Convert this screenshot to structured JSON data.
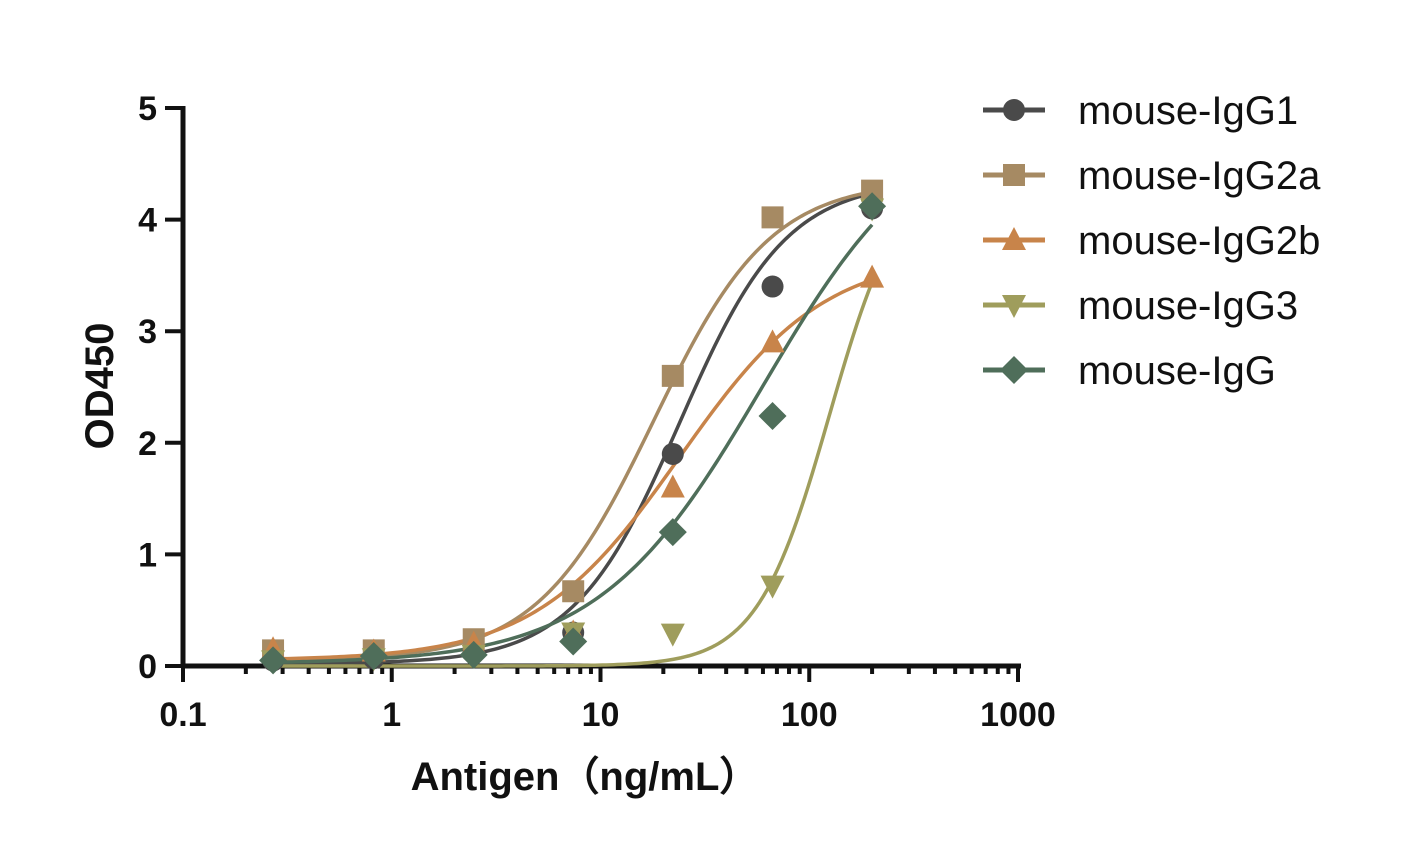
{
  "chart_data": {
    "type": "scatter",
    "xlabel": "Antigen（ng/mL）",
    "ylabel": "OD450",
    "x_scale": "log",
    "xlim": [
      0.1,
      1000
    ],
    "ylim": [
      0,
      5
    ],
    "x_ticks": [
      "0.1",
      "1",
      "10",
      "100",
      "1000"
    ],
    "x_tick_values": [
      0.1,
      1,
      10,
      100,
      1000
    ],
    "y_ticks": [
      "0",
      "1",
      "2",
      "3",
      "4",
      "5"
    ],
    "y_tick_values": [
      0,
      1,
      2,
      3,
      4,
      5
    ],
    "grid": false,
    "legend_position": "top-right",
    "fit": "sigmoidal",
    "x": [
      0.27,
      0.82,
      2.47,
      7.4,
      22.2,
      66.7,
      200
    ],
    "series": [
      {
        "name": "mouse-IgG1",
        "marker": "circle",
        "color": "#4a4a4a",
        "values": [
          0.05,
          0.07,
          0.12,
          0.3,
          1.9,
          3.4,
          4.1
        ],
        "fit": {
          "bottom": 0.02,
          "top": 4.35,
          "ec50": 24,
          "hill": 1.7
        }
      },
      {
        "name": "mouse-IgG2a",
        "marker": "square",
        "color": "#a68a63",
        "values": [
          0.14,
          0.14,
          0.24,
          0.67,
          2.6,
          4.02,
          4.26
        ],
        "fit": {
          "bottom": 0.05,
          "top": 4.35,
          "ec50": 18,
          "hill": 1.55
        }
      },
      {
        "name": "mouse-IgG2b",
        "marker": "triangle-up",
        "color": "#c8844a",
        "values": [
          0.15,
          0.13,
          0.2,
          0.3,
          1.6,
          2.9,
          3.48
        ],
        "fit": {
          "bottom": 0.05,
          "top": 3.7,
          "ec50": 24,
          "hill": 1.25
        }
      },
      {
        "name": "mouse-IgG3",
        "marker": "triangle-down",
        "color": "#9f9d5c",
        "values": [
          0.05,
          0.07,
          0.1,
          0.3,
          0.29,
          0.72,
          4.1
        ],
        "fit": {
          "bottom": 0.0,
          "top": 4.5,
          "ec50": 125,
          "hill": 2.5
        }
      },
      {
        "name": "mouse-IgG",
        "marker": "diamond",
        "color": "#4f6e5a",
        "values": [
          0.05,
          0.09,
          0.1,
          0.22,
          1.2,
          2.24,
          4.12
        ],
        "fit": {
          "bottom": 0.02,
          "top": 5.0,
          "ec50": 60,
          "hill": 1.1
        }
      }
    ]
  }
}
